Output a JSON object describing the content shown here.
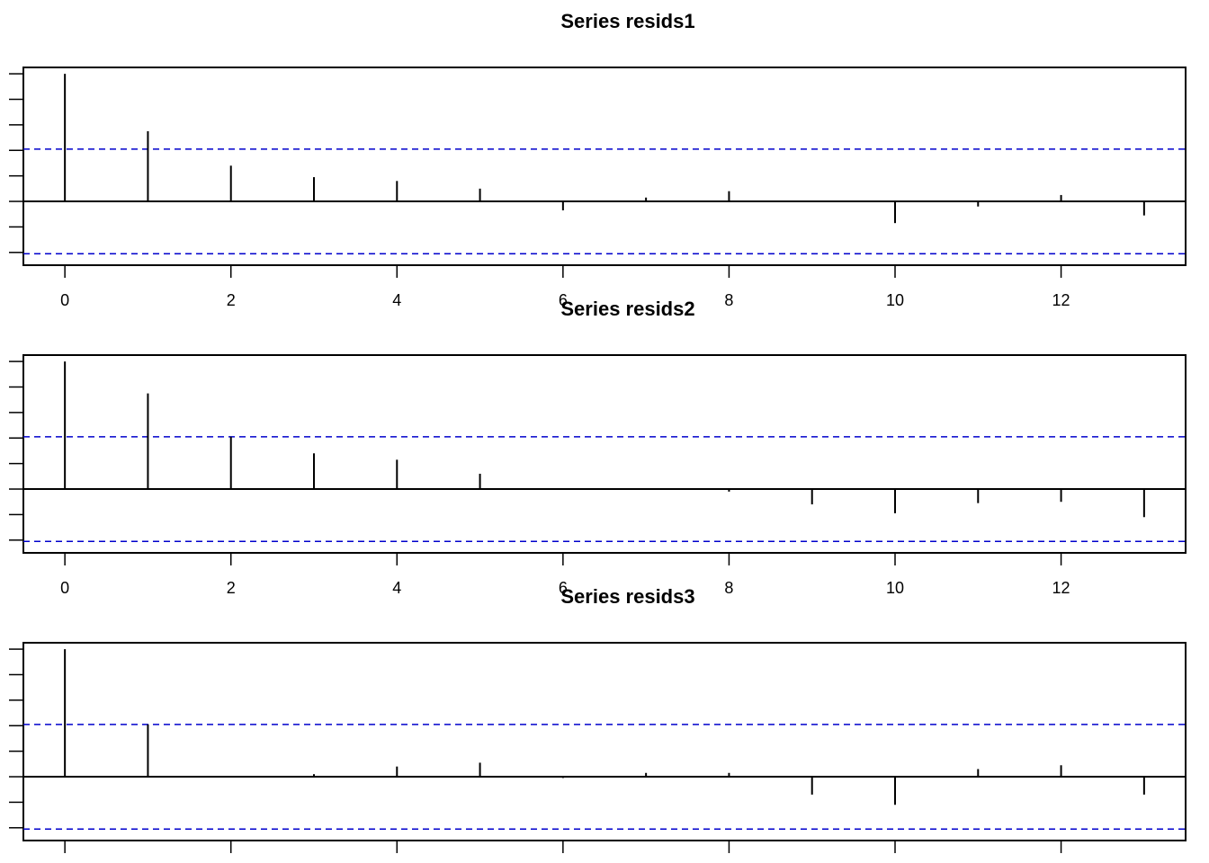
{
  "chart_data": [
    {
      "type": "bar",
      "title": "Series  resids1",
      "xlabel": "",
      "ylabel": "",
      "x": [
        0,
        1,
        2,
        3,
        4,
        5,
        6,
        7,
        8,
        9,
        10,
        11,
        12,
        13
      ],
      "values": [
        1.0,
        0.55,
        0.28,
        0.19,
        0.16,
        0.1,
        -0.07,
        0.03,
        0.08,
        0.0,
        -0.17,
        -0.04,
        0.05,
        -0.11
      ],
      "ci": 0.41,
      "xticks": [
        0,
        2,
        4,
        6,
        8,
        10,
        12
      ],
      "xtick_labels": [
        "0",
        "2",
        "4",
        "6",
        "8",
        "10",
        "12"
      ],
      "ylim": [
        -0.5,
        1.05
      ],
      "xlim": [
        -0.5,
        13.5
      ],
      "ci_color": "#0000cc"
    },
    {
      "type": "bar",
      "title": "Series  resids2",
      "xlabel": "",
      "ylabel": "",
      "x": [
        0,
        1,
        2,
        3,
        4,
        5,
        6,
        7,
        8,
        9,
        10,
        11,
        12,
        13
      ],
      "values": [
        1.0,
        0.75,
        0.41,
        0.28,
        0.23,
        0.12,
        0.0,
        0.0,
        -0.02,
        -0.12,
        -0.19,
        -0.11,
        -0.1,
        -0.22
      ],
      "ci": 0.41,
      "xticks": [
        0,
        2,
        4,
        6,
        8,
        10,
        12
      ],
      "xtick_labels": [
        "0",
        "2",
        "4",
        "6",
        "8",
        "10",
        "12"
      ],
      "ylim": [
        -0.5,
        1.05
      ],
      "xlim": [
        -0.5,
        13.5
      ],
      "ci_color": "#0000cc"
    },
    {
      "type": "bar",
      "title": "Series  resids3",
      "xlabel": "",
      "ylabel": "",
      "x": [
        0,
        1,
        2,
        3,
        4,
        5,
        6,
        7,
        8,
        9,
        10,
        11,
        12,
        13
      ],
      "values": [
        1.0,
        0.41,
        0.0,
        0.02,
        0.08,
        0.11,
        -0.01,
        0.03,
        0.03,
        -0.14,
        -0.22,
        0.06,
        0.09,
        -0.14
      ],
      "ci": 0.41,
      "xticks": [
        0,
        2,
        4,
        6,
        8,
        10,
        12
      ],
      "xtick_labels": [
        "",
        "",
        "",
        "",
        "",
        "",
        ""
      ],
      "ylim": [
        -0.5,
        1.05
      ],
      "xlim": [
        -0.5,
        13.5
      ],
      "ci_color": "#0000cc"
    }
  ]
}
